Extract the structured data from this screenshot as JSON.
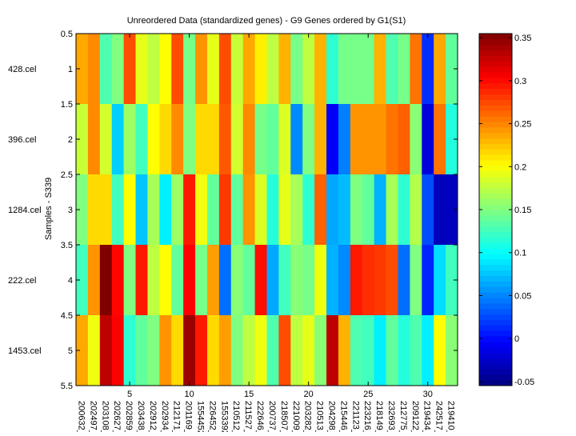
{
  "chart_data": {
    "type": "heatmap",
    "title": "Unreordered Data (standardized genes) - G9 Genes ordered by G1(S1)",
    "xlabel": "",
    "ylabel": "Samples - S339",
    "row_labels": [
      "428.cel",
      "396.cel",
      "1284.cel",
      "222.cel",
      "1453.cel"
    ],
    "column_labels": [
      "200632_",
      "202497_",
      "203108_",
      "202627_",
      "202859_",
      "203438_",
      "202912_",
      "202934_",
      "212171_",
      "201169_",
      "1554452",
      "226452_",
      "1553392",
      "210512_",
      "211527_",
      "222646_",
      "200737_",
      "218507_",
      "221009_",
      "203282_",
      "210513_",
      "204298_",
      "215446_",
      "221123_",
      "223216_",
      "218149_",
      "232693_",
      "212775_",
      "209122_",
      "219434_",
      "242517_",
      "219410_"
    ],
    "x_ticks": [
      "5",
      "10",
      "15",
      "20",
      "25",
      "30"
    ],
    "x_tick_values": [
      5,
      10,
      15,
      20,
      25,
      30
    ],
    "y_ticks": [
      "0.5",
      "1",
      "1.5",
      "2",
      "2.5",
      "3",
      "3.5",
      "4",
      "4.5",
      "5",
      "5.5"
    ],
    "y_tick_values": [
      0.5,
      1,
      1.5,
      2,
      2.5,
      3,
      3.5,
      4,
      4.5,
      5,
      5.5
    ],
    "colorbar": {
      "colormap": "jet",
      "range": [
        -0.0547,
        0.3547
      ],
      "ticks": [
        "-0.05",
        "0",
        "0.05",
        "0.1",
        "0.15",
        "0.2",
        "0.25",
        "0.3",
        "0.35"
      ],
      "tick_values": [
        -0.05,
        0,
        0.05,
        0.1,
        0.15,
        0.2,
        0.25,
        0.3,
        0.35
      ]
    },
    "values": [
      [
        0.236,
        0.248,
        0.13,
        0.15,
        0.273,
        0.191,
        0.175,
        0.201,
        0.273,
        0.146,
        0.244,
        0.191,
        0.273,
        0.179,
        0.236,
        0.207,
        0.175,
        0.232,
        0.146,
        0.175,
        0.232,
        0.117,
        0.146,
        0.146,
        0.146,
        0.232,
        0.13,
        0.146,
        0.257,
        0.015,
        0.236,
        0.138
      ],
      [
        0.179,
        0.248,
        0.183,
        0.08,
        0.162,
        0.125,
        0.201,
        0.216,
        0.248,
        0.15,
        0.216,
        0.216,
        0.269,
        0.183,
        0.248,
        0.146,
        0.138,
        0.187,
        0.052,
        0.15,
        0.232,
        -0.006,
        0.048,
        0.244,
        0.244,
        0.244,
        0.257,
        0.265,
        0.154,
        -0.018,
        0.257,
        0.113
      ],
      [
        0.15,
        0.216,
        0.216,
        0.125,
        0.201,
        0.076,
        0.166,
        0.093,
        0.162,
        0.294,
        0.195,
        0.138,
        0.281,
        0.138,
        0.244,
        0.187,
        0.113,
        0.191,
        0.166,
        0.117,
        0.265,
        0.064,
        0.072,
        0.15,
        0.138,
        0.068,
        0.166,
        0.117,
        0.171,
        0.027,
        -0.03,
        -0.03
      ],
      [
        0.125,
        0.244,
        0.355,
        0.302,
        0.15,
        0.294,
        0.175,
        0.201,
        0.138,
        0.304,
        0.146,
        0.24,
        0.041,
        0.154,
        0.138,
        0.298,
        0.064,
        0.125,
        0.154,
        0.146,
        0.195,
        0.068,
        0.052,
        0.294,
        0.285,
        0.281,
        0.273,
        0.041,
        0.15,
        0.011,
        0.086,
        0.125
      ],
      [
        0.236,
        0.195,
        0.33,
        0.304,
        0.117,
        0.138,
        0.15,
        0.244,
        0.216,
        0.343,
        0.294,
        0.216,
        0.24,
        0.15,
        0.175,
        0.195,
        0.13,
        0.273,
        0.175,
        0.191,
        0.154,
        0.33,
        0.232,
        0.13,
        0.125,
        0.093,
        0.138,
        0.113,
        0.13,
        0.093,
        0.201,
        0.154
      ]
    ]
  }
}
